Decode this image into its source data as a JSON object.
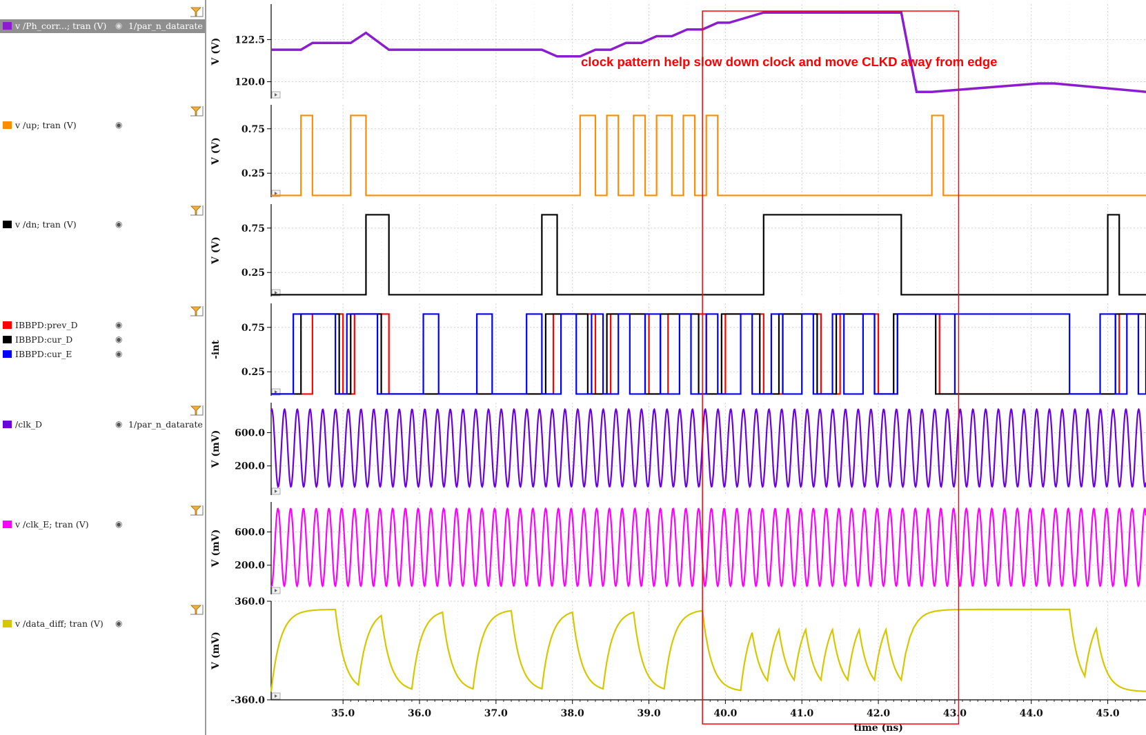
{
  "legend": {
    "strips": [
      {
        "entries": [
          {
            "name": "v /Ph_corr...; tran (V)",
            "color": "#8b1ccf",
            "visible_icon": "eye-icon",
            "transform": "1/par_n_datarate",
            "selected": true
          }
        ]
      },
      {
        "entries": [
          {
            "name": "v /up; tran (V)",
            "color": "#ff8c00",
            "visible_icon": "eye-icon"
          }
        ]
      },
      {
        "entries": [
          {
            "name": "v /dn; tran (V)",
            "color": "#000000",
            "visible_icon": "eye-icon"
          }
        ]
      },
      {
        "entries": [
          {
            "name": "IBBPD:prev_D",
            "color": "#ff0000",
            "visible_icon": "eye-icon"
          },
          {
            "name": "IBBPD:cur_D",
            "color": "#000000",
            "visible_icon": "eye-icon"
          },
          {
            "name": "IBBPD:cur_E",
            "color": "#0000ff",
            "visible_icon": "eye-icon"
          }
        ]
      },
      {
        "entries": [
          {
            "name": "/clk_D",
            "color": "#6a00e0",
            "visible_icon": "eye-icon",
            "transform": "1/par_n_datarate"
          }
        ]
      },
      {
        "entries": [
          {
            "name": "v /clk_E; tran (V)",
            "color": "#ff00ff",
            "visible_icon": "eye-icon"
          }
        ]
      },
      {
        "entries": [
          {
            "name": "v /data_diff; tran (V)",
            "color": "#d6c800",
            "visible_icon": "eye-icon"
          }
        ]
      }
    ],
    "strip_tools_icon": "filter-funnel-icon"
  },
  "annotation": {
    "text": "clock pattern help slow down clock and move CLKD away from edge",
    "color": "#ff0000",
    "box_time_range": [
      39.7,
      43.05
    ]
  },
  "chart_data": {
    "type": "line",
    "xlabel": "time (ns)",
    "xlim": [
      34.06,
      45.5
    ],
    "xticks": [
      "35.0",
      "36.0",
      "37.0",
      "38.0",
      "39.0",
      "40.0",
      "41.0",
      "42.0",
      "43.0",
      "44.0",
      "45.0"
    ],
    "xtick_values": [
      35,
      36,
      37,
      38,
      39,
      40,
      41,
      42,
      43,
      44,
      45
    ],
    "strips": [
      {
        "ylabel": "V (V)",
        "ylim": [
          119.0,
          124.6
        ],
        "yticks": [
          {
            "value": 122.5,
            "label": "122.5"
          },
          {
            "value": 120.0,
            "label": "120.0"
          }
        ],
        "series": [
          {
            "color": "#8b1ccf",
            "x": [
              34.06,
              34.45,
              34.6,
              35.1,
              35.3,
              35.6,
              37.6,
              37.8,
              38.1,
              38.3,
              38.5,
              38.7,
              38.9,
              39.1,
              39.3,
              39.5,
              39.7,
              39.9,
              40.05,
              40.5,
              42.3,
              42.5,
              42.7,
              44.1,
              44.3,
              45.5
            ],
            "y": [
              121.9,
              121.9,
              122.3,
              122.3,
              122.9,
              121.9,
              121.9,
              121.5,
              121.5,
              121.9,
              121.9,
              122.3,
              122.3,
              122.7,
              122.7,
              123.1,
              123.1,
              123.5,
              123.5,
              124.1,
              124.1,
              119.4,
              119.4,
              119.9,
              119.9,
              119.4
            ]
          }
        ]
      },
      {
        "ylabel": "V (V)",
        "ylim": [
          -0.02,
          1.02
        ],
        "yticks": [
          {
            "value": 0.75,
            "label": "0.75"
          },
          {
            "value": 0.25,
            "label": "0.25"
          }
        ],
        "series": [
          {
            "color": "#ff8c00",
            "low": 0.0,
            "high": 0.9,
            "pulses": [
              [
                34.45,
                34.6
              ],
              [
                35.1,
                35.3
              ],
              [
                38.1,
                38.3
              ],
              [
                38.45,
                38.6
              ],
              [
                38.8,
                38.95
              ],
              [
                39.1,
                39.3
              ],
              [
                39.45,
                39.6
              ],
              [
                39.75,
                39.9
              ],
              [
                42.7,
                42.85
              ]
            ]
          }
        ]
      },
      {
        "ylabel": "V (V)",
        "ylim": [
          -0.02,
          1.02
        ],
        "yticks": [
          {
            "value": 0.75,
            "label": "0.75"
          },
          {
            "value": 0.25,
            "label": "0.25"
          }
        ],
        "series": [
          {
            "color": "#000000",
            "low": 0.0,
            "high": 0.9,
            "pulses": [
              [
                35.3,
                35.6
              ],
              [
                37.6,
                37.8
              ],
              [
                40.5,
                42.3
              ],
              [
                45.0,
                45.15
              ]
            ]
          }
        ]
      },
      {
        "ylabel": "-int",
        "ylim": [
          -0.02,
          1.02
        ],
        "yticks": [
          {
            "value": 0.75,
            "label": "0.75"
          },
          {
            "value": 0.25,
            "label": "0.25"
          }
        ],
        "series": [
          {
            "color": "#ff0000",
            "low": 0.0,
            "high": 0.9,
            "pulses": [
              [
                34.6,
                35.0
              ],
              [
                35.15,
                35.6
              ],
              [
                37.75,
                38.3
              ],
              [
                38.5,
                39.0
              ],
              [
                39.25,
                39.75
              ],
              [
                40.0,
                40.5
              ],
              [
                40.75,
                41.25
              ],
              [
                41.5,
                42.0
              ],
              [
                42.25,
                42.8
              ],
              [
                45.15,
                45.5
              ]
            ]
          },
          {
            "color": "#000000",
            "low": 0.0,
            "high": 0.9,
            "pulses": [
              [
                34.45,
                34.95
              ],
              [
                35.1,
                35.5
              ],
              [
                37.65,
                38.2
              ],
              [
                38.45,
                38.95
              ],
              [
                39.15,
                39.65
              ],
              [
                39.95,
                40.45
              ],
              [
                40.7,
                41.2
              ],
              [
                41.45,
                41.95
              ],
              [
                42.2,
                42.75
              ],
              [
                45.1,
                45.5
              ]
            ]
          },
          {
            "color": "#0000ff",
            "low": 0.0,
            "high": 0.9,
            "pulses": [
              [
                34.35,
                34.9
              ],
              [
                35.05,
                35.45
              ],
              [
                36.05,
                36.25
              ],
              [
                36.75,
                36.95
              ],
              [
                37.4,
                37.6
              ],
              [
                37.85,
                38.05
              ],
              [
                38.25,
                38.4
              ],
              [
                38.6,
                38.75
              ],
              [
                38.95,
                39.15
              ],
              [
                39.4,
                39.55
              ],
              [
                39.75,
                39.9
              ],
              [
                40.2,
                40.35
              ],
              [
                40.6,
                40.75
              ],
              [
                41.0,
                41.15
              ],
              [
                41.4,
                41.55
              ],
              [
                41.8,
                41.95
              ],
              [
                42.25,
                43.0
              ],
              [
                43.0,
                44.5
              ],
              [
                44.9,
                45.1
              ],
              [
                45.25,
                45.4
              ]
            ]
          }
        ]
      },
      {
        "ylabel": "V (mV)",
        "ylim": [
          -150,
          960
        ],
        "yticks": [
          {
            "value": 600.0,
            "label": "600.0"
          },
          {
            "value": 200.0,
            "label": "200.0"
          }
        ],
        "series": [
          {
            "color": "#6a00e0",
            "kind": "sine",
            "min": -50,
            "max": 880,
            "period": 0.1667,
            "phase": 0.02
          }
        ]
      },
      {
        "ylabel": "V (mV)",
        "ylim": [
          -150,
          960
        ],
        "yticks": [
          {
            "value": 600.0,
            "label": "600.0"
          },
          {
            "value": 200.0,
            "label": "200.0"
          }
        ],
        "series": [
          {
            "color": "#ff00ff",
            "kind": "sine",
            "min": -50,
            "max": 880,
            "period": 0.1667,
            "phase": 0.1
          }
        ]
      },
      {
        "ylabel": "V (mV)",
        "ylim": [
          -360,
          360
        ],
        "yticks": [
          {
            "value": 360.0,
            "label": "360.0"
          },
          {
            "value": -360.0,
            "label": "-360.0"
          }
        ],
        "series": [
          {
            "color": "#d6c800",
            "kind": "rc",
            "vmax": 300,
            "vmin": -300,
            "tau": 0.12,
            "start_value": -300,
            "flip_times": [
              34.06,
              34.9,
              35.2,
              35.5,
              35.9,
              36.3,
              36.7,
              37.2,
              37.6,
              38.0,
              38.4,
              38.8,
              39.2,
              39.7,
              40.2,
              40.35,
              40.55,
              40.7,
              40.9,
              41.05,
              41.25,
              41.4,
              41.6,
              41.75,
              41.95,
              42.1,
              42.3,
              44.5,
              44.7,
              44.85
            ]
          }
        ]
      }
    ]
  }
}
